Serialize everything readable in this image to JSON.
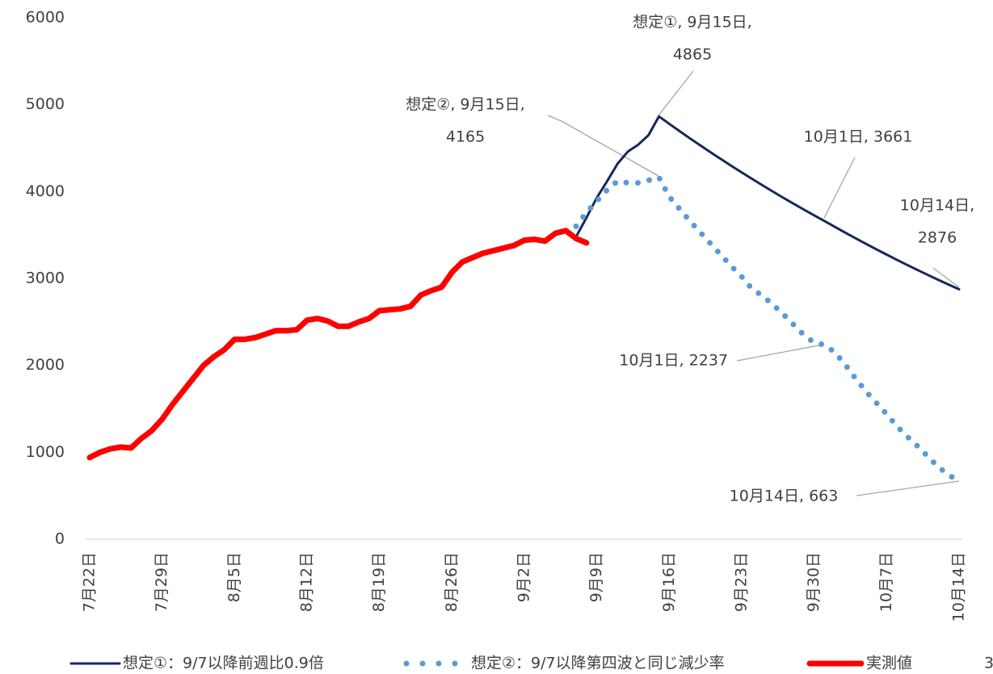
{
  "chart_data": {
    "type": "line",
    "categories": [
      "7月22日",
      null,
      null,
      null,
      null,
      null,
      null,
      "7月29日",
      null,
      null,
      null,
      null,
      null,
      null,
      "8月5日",
      null,
      null,
      null,
      null,
      null,
      null,
      "8月12日",
      null,
      null,
      null,
      null,
      null,
      null,
      "8月19日",
      null,
      null,
      null,
      null,
      null,
      null,
      "8月26日",
      null,
      null,
      null,
      null,
      null,
      null,
      "9月2日",
      null,
      null,
      null,
      null,
      null,
      null,
      "9月9日",
      null,
      null,
      null,
      null,
      null,
      null,
      "9月16日",
      null,
      null,
      null,
      null,
      null,
      null,
      "9月23日",
      null,
      null,
      null,
      null,
      null,
      null,
      "9月30日",
      null,
      null,
      null,
      null,
      null,
      null,
      "10月7日",
      null,
      null,
      null,
      null,
      null,
      null,
      "10月14日"
    ],
    "series": [
      {
        "name": "想定①：9/7以降前週比0.9倍",
        "color": "#14285a",
        "style": "solid",
        "width": 3,
        "values": [
          null,
          null,
          null,
          null,
          null,
          null,
          null,
          null,
          null,
          null,
          null,
          null,
          null,
          null,
          null,
          null,
          null,
          null,
          null,
          null,
          null,
          null,
          null,
          null,
          null,
          null,
          null,
          null,
          null,
          null,
          null,
          null,
          null,
          null,
          null,
          null,
          null,
          null,
          null,
          null,
          null,
          null,
          null,
          null,
          null,
          null,
          null,
          3480,
          3700,
          3930,
          4120,
          4320,
          4460,
          4540,
          4650,
          4865,
          4779,
          4695,
          4612,
          4531,
          4451,
          4373,
          4296,
          4220,
          4146,
          4073,
          4001,
          3930,
          3861,
          3793,
          3726,
          3661,
          3594,
          3528,
          3463,
          3399,
          3336,
          3275,
          3214,
          3155,
          3097,
          3040,
          2984,
          2929,
          2876
        ]
      },
      {
        "name": "想定②：9/7以降第四波と同じ減少率",
        "color": "#5b9bd5",
        "style": "dotted",
        "width": 7,
        "values": [
          null,
          null,
          null,
          null,
          null,
          null,
          null,
          null,
          null,
          null,
          null,
          null,
          null,
          null,
          null,
          null,
          null,
          null,
          null,
          null,
          null,
          null,
          null,
          null,
          null,
          null,
          null,
          null,
          null,
          null,
          null,
          null,
          null,
          null,
          null,
          null,
          null,
          null,
          null,
          null,
          null,
          null,
          null,
          null,
          null,
          null,
          null,
          3600,
          3760,
          3890,
          4020,
          4120,
          4100,
          4100,
          4130,
          4165,
          3940,
          3800,
          3660,
          3530,
          3400,
          3270,
          3140,
          3020,
          2880,
          2800,
          2700,
          2590,
          2470,
          2350,
          2260,
          2237,
          2150,
          2010,
          1850,
          1700,
          1570,
          1440,
          1300,
          1180,
          1070,
          950,
          830,
          740,
          663
        ]
      },
      {
        "name": "実測値",
        "color": "#ff0000",
        "style": "solid",
        "width": 7,
        "values": [
          940,
          1000,
          1040,
          1060,
          1050,
          1160,
          1250,
          1380,
          1550,
          1700,
          1850,
          2000,
          2100,
          2180,
          2300,
          2300,
          2320,
          2360,
          2400,
          2400,
          2410,
          2520,
          2540,
          2510,
          2450,
          2450,
          2500,
          2540,
          2630,
          2640,
          2650,
          2680,
          2810,
          2860,
          2900,
          3070,
          3190,
          3240,
          3290,
          3320,
          3350,
          3380,
          3440,
          3450,
          3430,
          3520,
          3550,
          3460,
          3410,
          null,
          null,
          null,
          null,
          null,
          null,
          null,
          null,
          null,
          null,
          null,
          null,
          null,
          null,
          null,
          null,
          null,
          null,
          null,
          null,
          null,
          null,
          null,
          null,
          null,
          null,
          null,
          null,
          null,
          null,
          null,
          null,
          null,
          null,
          null,
          null
        ]
      }
    ],
    "ylim": [
      0,
      6000
    ],
    "yticks": [
      0,
      1000,
      2000,
      3000,
      4000,
      5000,
      6000
    ],
    "grid": false,
    "legend": "bottom",
    "annotations": [
      {
        "lines": [
          "想定①, 9月15日,",
          "4865"
        ]
      },
      {
        "lines": [
          "想定②, 9月15日,",
          "4165"
        ]
      },
      {
        "lines": [
          "10月1日, 3661"
        ]
      },
      {
        "lines": [
          "10月14日,",
          "2876"
        ]
      },
      {
        "lines": [
          "10月1日, 2237"
        ]
      },
      {
        "lines": [
          "10月14日, 663"
        ]
      }
    ]
  },
  "page_number": "3"
}
